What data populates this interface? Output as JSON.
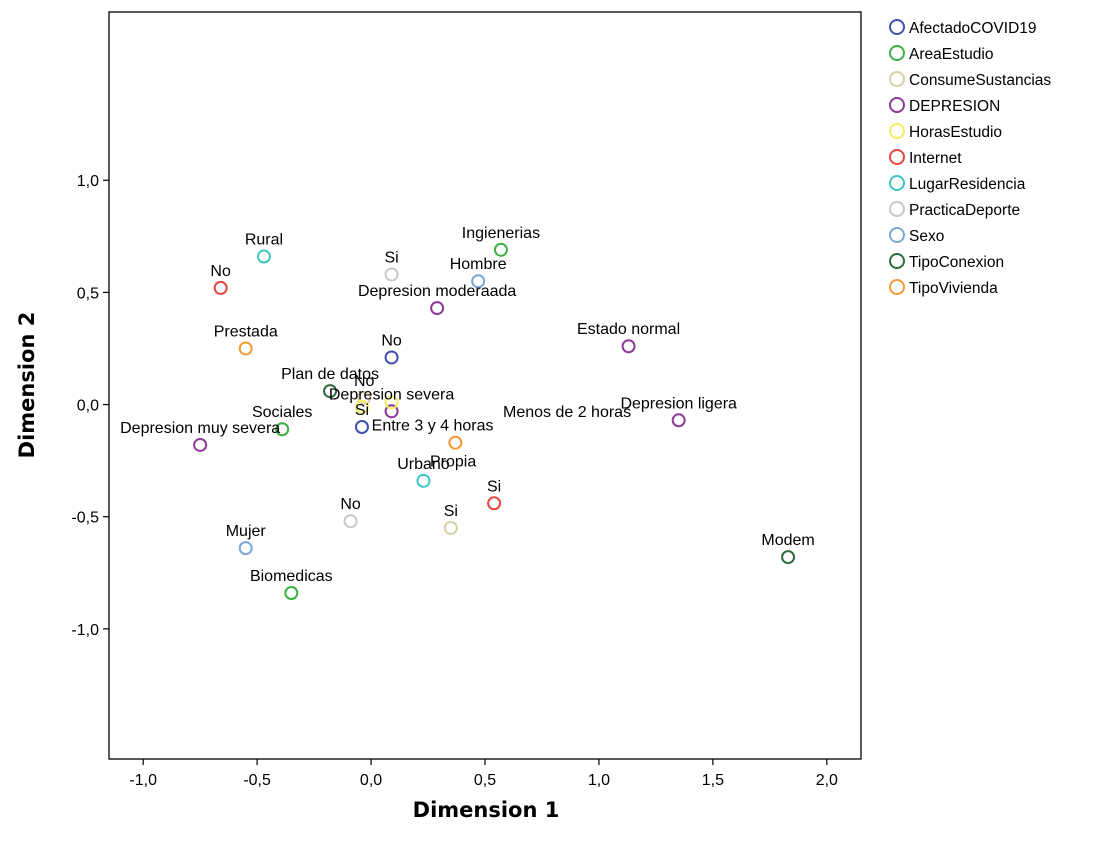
{
  "chart_data": {
    "type": "scatter",
    "xlabel": "Dimension 1",
    "ylabel": "Dimension 2",
    "xlim": [
      -1.15,
      2.15
    ],
    "ylim": [
      -1.58,
      1.75
    ],
    "xticks": [
      -1.0,
      -0.5,
      0.0,
      0.5,
      1.0,
      1.5,
      2.0
    ],
    "xtick_labels": [
      "-1,0",
      "-0,5",
      "0,0",
      "0,5",
      "1,0",
      "1,5",
      "2,0"
    ],
    "yticks": [
      1.0,
      0.5,
      0.0,
      -0.5,
      -1.0
    ],
    "ytick_labels": [
      "1,0",
      "0,5",
      "0,0",
      "-0,5",
      "-1,0"
    ],
    "grid": false,
    "legend_position": "top-right-outside",
    "series": [
      {
        "name": "AfectadoCOVID19",
        "color": "#3f4fb0",
        "points": [
          {
            "label": "No",
            "x": 0.09,
            "y": 0.21
          },
          {
            "label": "Si",
            "x": -0.04,
            "y": -0.1
          }
        ]
      },
      {
        "name": "AreaEstudio",
        "color": "#3cb043",
        "points": [
          {
            "label": "Ingienerias",
            "x": 0.57,
            "y": 0.69
          },
          {
            "label": "Sociales",
            "x": -0.39,
            "y": -0.11
          },
          {
            "label": "Biomedicas",
            "x": -0.35,
            "y": -0.84
          }
        ]
      },
      {
        "name": "ConsumeSustancias",
        "color": "#d6cfa8",
        "points": [
          {
            "label": "No",
            "x": -0.03,
            "y": 0.03
          },
          {
            "label": "Si",
            "x": 0.35,
            "y": -0.55
          }
        ]
      },
      {
        "name": "DEPRESION",
        "color": "#8c3a97",
        "points": [
          {
            "label": "Depresion moderaada",
            "x": 0.29,
            "y": 0.43
          },
          {
            "label": "Estado normal",
            "x": 1.13,
            "y": 0.26
          },
          {
            "label": "Depresion severa",
            "x": 0.09,
            "y": -0.03
          },
          {
            "label": "Depresion ligera",
            "x": 1.35,
            "y": -0.07
          },
          {
            "label": "Depresion muy severa",
            "x": -0.75,
            "y": -0.18
          }
        ]
      },
      {
        "name": "HorasEstudio",
        "color": "#f5ee5f",
        "points": [
          {
            "label": "",
            "x": 0.09,
            "y": 0.01
          },
          {
            "label": "",
            "x": -0.04,
            "y": -0.01
          }
        ]
      },
      {
        "name": "Internet",
        "color": "#e8453c",
        "points": [
          {
            "label": "No",
            "x": -0.66,
            "y": 0.52
          },
          {
            "label": "Si",
            "x": 0.54,
            "y": -0.44
          }
        ]
      },
      {
        "name": "LugarResidencia",
        "color": "#3dc6c6",
        "points": [
          {
            "label": "Rural",
            "x": -0.47,
            "y": 0.66
          },
          {
            "label": "Urbano",
            "x": 0.23,
            "y": -0.34
          }
        ]
      },
      {
        "name": "PracticaDeporte",
        "color": "#c8c8c8",
        "points": [
          {
            "label": "Si",
            "x": 0.09,
            "y": 0.58
          },
          {
            "label": "No",
            "x": -0.09,
            "y": -0.52
          }
        ]
      },
      {
        "name": "Sexo",
        "color": "#7aa8d8",
        "points": [
          {
            "label": "Hombre",
            "x": 0.47,
            "y": 0.55
          },
          {
            "label": "Mujer",
            "x": -0.55,
            "y": -0.64
          }
        ]
      },
      {
        "name": "TipoConexion",
        "color": "#2e6b3e",
        "points": [
          {
            "label": "Plan de datos",
            "x": -0.18,
            "y": 0.06
          },
          {
            "label": "Modem",
            "x": 1.83,
            "y": -0.68
          }
        ]
      },
      {
        "name": "TipoVivienda",
        "color": "#f39a35",
        "points": [
          {
            "label": "Prestada",
            "x": -0.55,
            "y": 0.25
          },
          {
            "label": "",
            "x": 0.37,
            "y": -0.17
          }
        ]
      }
    ],
    "annotations": [
      {
        "text": "Menos de 2 horas",
        "x": 0.86,
        "y": -0.055
      },
      {
        "text": "Entre 3 y 4 horas",
        "x": 0.27,
        "y": -0.115
      },
      {
        "text": "Propia",
        "x": 0.36,
        "y": -0.275
      }
    ]
  }
}
